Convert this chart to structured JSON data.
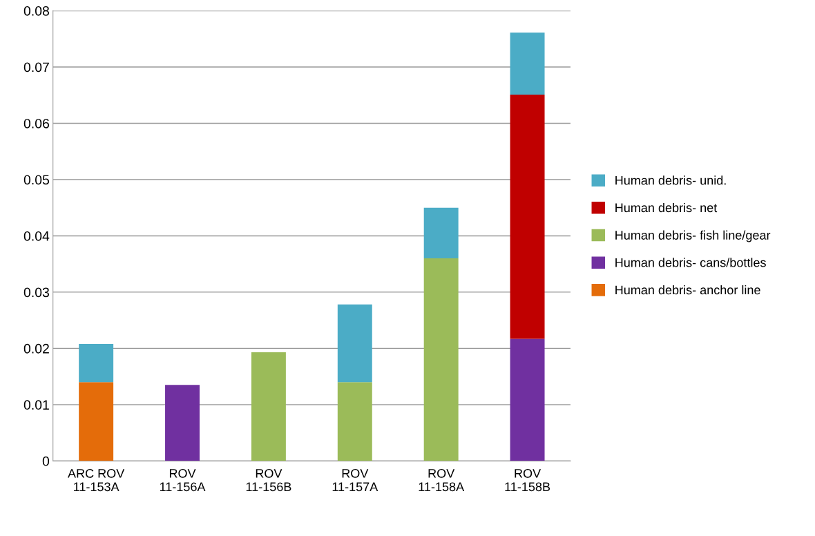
{
  "chart_data": {
    "type": "bar",
    "stacked": true,
    "categories": [
      "ARC ROV 11-153A",
      "ROV 11-156A",
      "ROV 11-156B",
      "ROV 11-157A",
      "ROV 11-158A",
      "ROV 11-158B"
    ],
    "series": [
      {
        "name": "Human debris- anchor line",
        "color": "#e46c0a",
        "values": [
          0.014,
          null,
          null,
          null,
          null,
          null
        ]
      },
      {
        "name": "Human debris- cans/bottles",
        "color": "#7030a0",
        "values": [
          null,
          0.0135,
          null,
          null,
          null,
          0.0217
        ]
      },
      {
        "name": "Human debris- fish line/gear",
        "color": "#9bbb59",
        "values": [
          null,
          null,
          0.0193,
          0.014,
          0.036,
          null
        ]
      },
      {
        "name": "Human debris- net",
        "color": "#c00000",
        "values": [
          null,
          null,
          null,
          null,
          null,
          0.0434
        ]
      },
      {
        "name": "Human debris- unid.",
        "color": "#4bacc6",
        "values": [
          0.0068,
          null,
          null,
          0.0138,
          0.009,
          0.011
        ]
      }
    ],
    "ylim": [
      0,
      0.08
    ],
    "yticks": [
      0,
      0.01,
      0.02,
      0.03,
      0.04,
      0.05,
      0.06,
      0.07,
      0.08
    ],
    "grid": "y",
    "legend": "right"
  }
}
